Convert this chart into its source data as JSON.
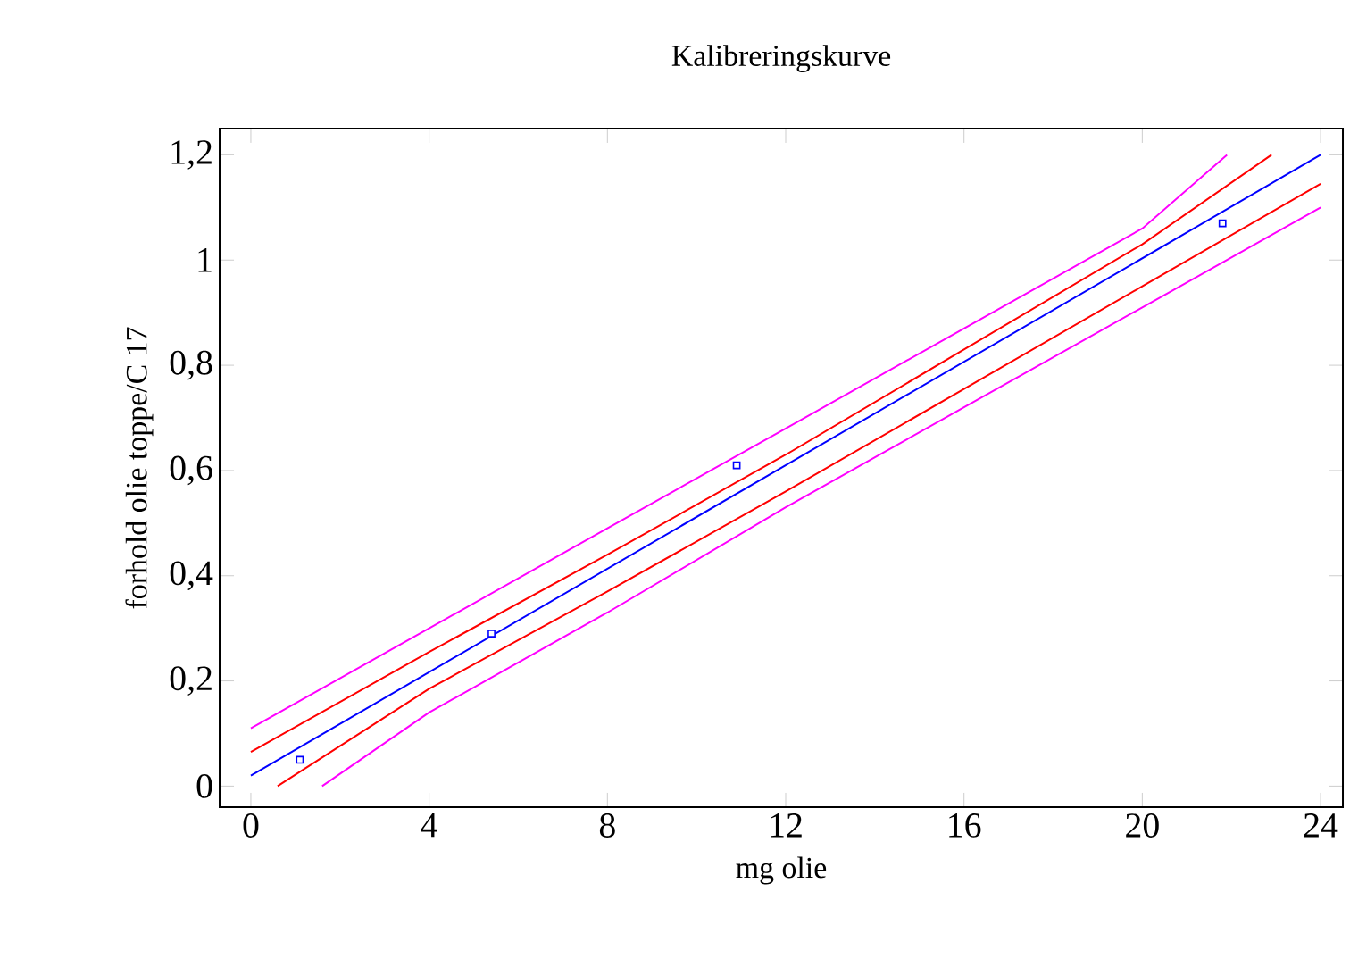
{
  "chart_data": {
    "type": "line",
    "title": "Kalibreringskurve",
    "xlabel": "mg olie",
    "ylabel": "forhold olie toppe/C 17",
    "xlim": [
      -0.7,
      24.5
    ],
    "ylim": [
      -0.04,
      1.25
    ],
    "xticks": [
      0,
      4,
      8,
      12,
      16,
      20,
      24
    ],
    "yticks": [
      0,
      {
        "value": 0.2,
        "label": "0,2"
      },
      {
        "value": 0.4,
        "label": "0,4"
      },
      {
        "value": 0.6,
        "label": "0,6"
      },
      {
        "value": 0.8,
        "label": "0,8"
      },
      1,
      {
        "value": 1.2,
        "label": "1,2"
      }
    ],
    "line_style": "solid",
    "series": [
      {
        "color": "#ff00ff",
        "x": [
          0,
          4,
          8,
          12,
          16,
          20,
          21.9
        ],
        "values": [
          0.11,
          0.3,
          0.49,
          0.68,
          0.87,
          1.06,
          1.2
        ]
      },
      {
        "color": "#ff0000",
        "x": [
          0,
          4,
          8,
          12,
          16,
          20,
          22.9
        ],
        "values": [
          0.065,
          0.255,
          0.44,
          0.63,
          0.83,
          1.03,
          1.2
        ]
      },
      {
        "color": "#0000ff",
        "x": [
          0,
          12,
          24
        ],
        "values": [
          0.02,
          0.61,
          1.2
        ]
      },
      {
        "color": "#ff0000",
        "x": [
          0.6,
          4,
          8,
          12,
          16,
          20,
          24
        ],
        "values": [
          0,
          0.185,
          0.37,
          0.56,
          0.755,
          0.95,
          1.145
        ]
      },
      {
        "color": "#ff00ff",
        "x": [
          1.6,
          4,
          8,
          12,
          16,
          20,
          24
        ],
        "values": [
          0,
          0.14,
          0.33,
          0.53,
          0.72,
          0.91,
          1.1
        ]
      },
      {
        "type": "scatter",
        "marker": "square",
        "color": "#0000ff",
        "x": [
          1.1,
          5.4,
          10.9,
          21.8
        ],
        "values": [
          0.05,
          0.29,
          0.61,
          1.07
        ]
      }
    ]
  }
}
